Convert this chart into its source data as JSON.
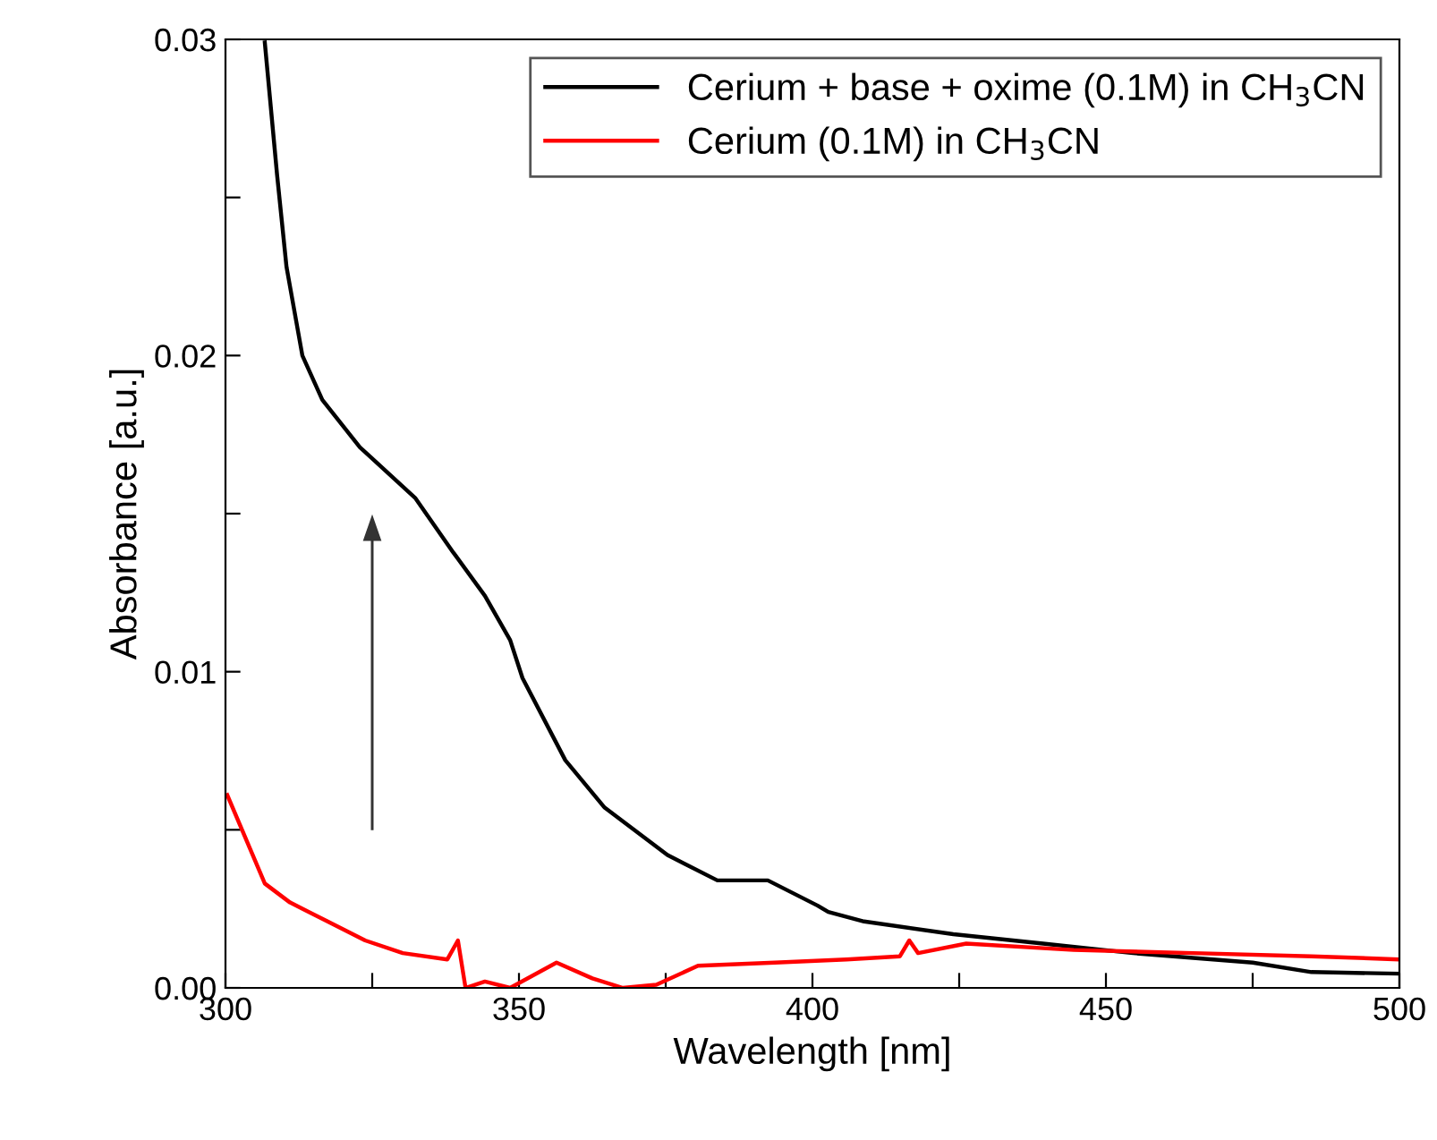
{
  "chart_data": {
    "type": "line",
    "xlabel": "Wavelength [nm]",
    "ylabel": "Absorbance [a.u.]",
    "xlim": [
      300,
      500
    ],
    "ylim": [
      0,
      0.03
    ],
    "xticks": [
      300,
      {
        "value": 325,
        "label": null
      },
      350,
      {
        "value": 375,
        "label": null
      },
      400,
      {
        "value": 425,
        "label": null
      },
      450,
      {
        "value": 475,
        "label": null
      },
      500
    ],
    "yticks": [
      {
        "value": 0,
        "label": "0.00"
      },
      {
        "value": 0.005,
        "label": null
      },
      {
        "value": 0.01,
        "label": "0.01"
      },
      {
        "value": 0.015,
        "label": null
      },
      {
        "value": 0.02,
        "label": "0.02"
      },
      {
        "value": 0.025,
        "label": null
      },
      {
        "value": 0.03,
        "label": "0.03"
      }
    ],
    "grid": false,
    "legend": "top right",
    "marker": "none",
    "line_style": "solid",
    "series": [
      {
        "name": "Cerium + base + oxime (0.1M) in CH$_{3}$CN",
        "color": "#000000",
        "x": [
          306.7,
          308.8,
          310.4,
          313.1,
          316.5,
          322.9,
          332.3,
          338.7,
          344.2,
          348.5,
          350.6,
          357.9,
          364.6,
          375.3,
          383.8,
          392.4,
          400.9,
          402.7,
          408.8,
          424,
          439.3,
          454.6,
          475,
          485,
          500
        ],
        "values": [
          0.0299,
          0.0257,
          0.0228,
          0.02,
          0.0186,
          0.0171,
          0.0155,
          0.0138,
          0.0124,
          0.011,
          0.0098,
          0.0072,
          0.0057,
          0.0042,
          0.0034,
          0.0034,
          0.0026,
          0.0024,
          0.0021,
          0.0017,
          0.0014,
          0.0011,
          0.0008,
          0.0005,
          0.00045
        ]
      },
      {
        "name": "Cerium (0.1M) in CH$_{3}$CN",
        "color": "#ff0000",
        "x": [
          300.3,
          306.7,
          311,
          317.4,
          323.8,
          330.2,
          337.8,
          339.6,
          340.9,
          344.2,
          348.5,
          356.4,
          362.5,
          367.7,
          373.4,
          380.5,
          393.6,
          405.8,
          414.9,
          416.5,
          418,
          426.2,
          444.5,
          464.9,
          485,
          500
        ],
        "values": [
          0.0061,
          0.0033,
          0.0027,
          0.0021,
          0.0015,
          0.0011,
          0.0009,
          0.0015,
          0.0,
          0.0002,
          0.0,
          0.0008,
          0.0003,
          0.0,
          0.0001,
          0.0007,
          0.0008,
          0.0009,
          0.001,
          0.0015,
          0.0011,
          0.0014,
          0.0012,
          0.0011,
          0.001,
          0.0009
        ]
      }
    ]
  }
}
